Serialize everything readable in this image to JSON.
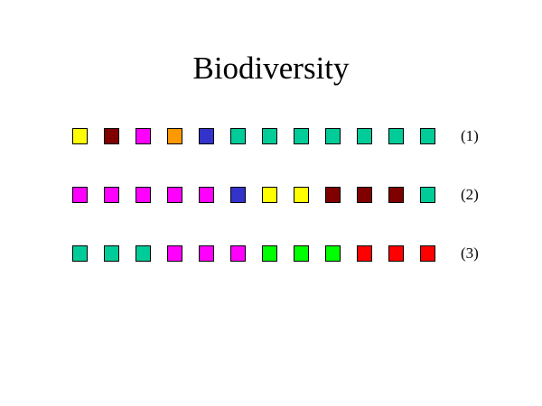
{
  "title": "Biodiversity",
  "palette": {
    "yellow": "#ffff00",
    "maroon": "#800000",
    "magenta": "#ff00ff",
    "orange": "#ff9900",
    "blue": "#3333cc",
    "teal": "#00cc99",
    "green": "#00ff00",
    "red": "#ff0000"
  },
  "rows": [
    {
      "label": "(1)",
      "squares": [
        "yellow",
        "maroon",
        "magenta",
        "orange",
        "blue",
        "teal",
        "teal",
        "teal",
        "teal",
        "teal",
        "teal",
        "teal"
      ]
    },
    {
      "label": "(2)",
      "squares": [
        "magenta",
        "magenta",
        "magenta",
        "magenta",
        "magenta",
        "blue",
        "yellow",
        "yellow",
        "maroon",
        "maroon",
        "maroon",
        "teal"
      ]
    },
    {
      "label": "(3)",
      "squares": [
        "teal",
        "teal",
        "teal",
        "magenta",
        "magenta",
        "magenta",
        "green",
        "green",
        "green",
        "red",
        "red",
        "red"
      ]
    }
  ]
}
